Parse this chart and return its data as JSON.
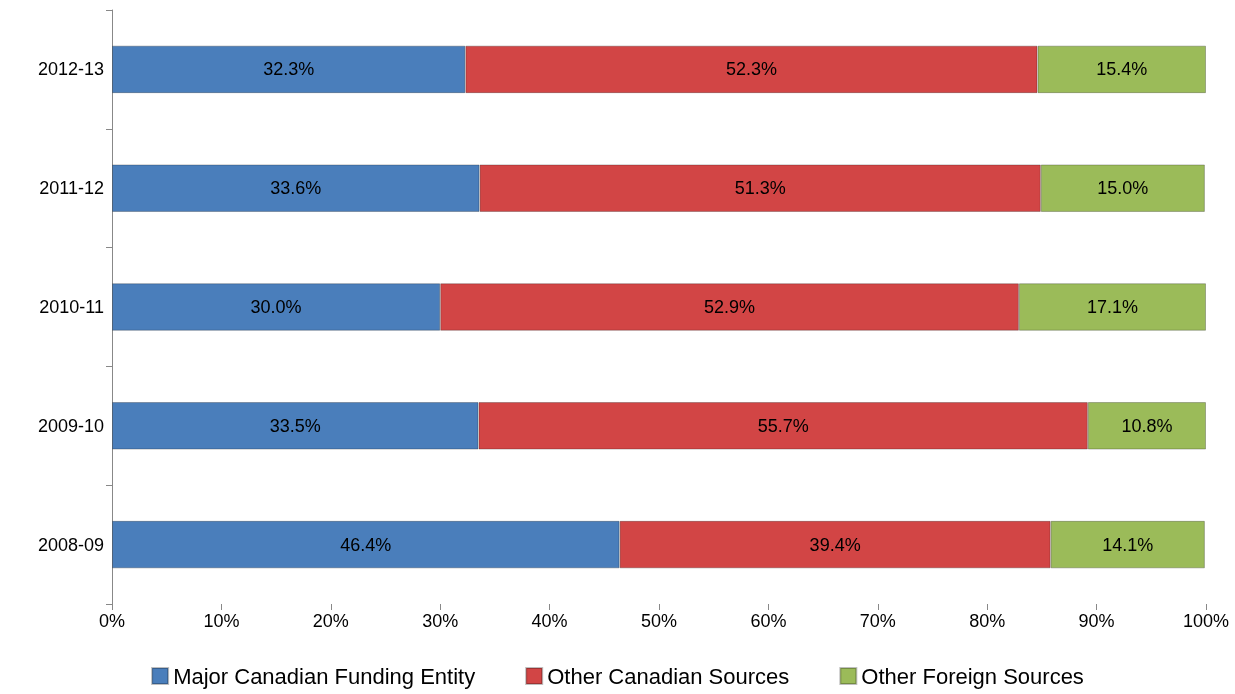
{
  "chart_data": {
    "type": "bar",
    "orientation": "horizontal",
    "stacked": true,
    "categories": [
      "2012-13",
      "2011-12",
      "2010-11",
      "2009-10",
      "2008-09"
    ],
    "series": [
      {
        "name": "Major Canadian Funding Entity",
        "color": "#4a7ebb",
        "values": [
          32.3,
          33.6,
          30.0,
          33.5,
          46.4
        ],
        "value_labels": [
          "32.3%",
          "33.6%",
          "30.0%",
          "33.5%",
          "46.4%"
        ]
      },
      {
        "name": "Other Canadian Sources",
        "color": "#d24545",
        "values": [
          52.3,
          51.3,
          52.9,
          55.7,
          39.4
        ],
        "value_labels": [
          "52.3%",
          "51.3%",
          "52.9%",
          "55.7%",
          "39.4%"
        ]
      },
      {
        "name": "Other Foreign Sources",
        "color": "#9bbb59",
        "values": [
          15.4,
          15.0,
          17.1,
          10.8,
          14.1
        ],
        "value_labels": [
          "15.4%",
          "15.0%",
          "17.1%",
          "10.8%",
          "14.1%"
        ]
      }
    ],
    "xlim": [
      0,
      100
    ],
    "xticks": [
      {
        "value": 0,
        "label": "0%"
      },
      {
        "value": 10,
        "label": "10%"
      },
      {
        "value": 20,
        "label": "20%"
      },
      {
        "value": 30,
        "label": "30%"
      },
      {
        "value": 40,
        "label": "40%"
      },
      {
        "value": 50,
        "label": "50%"
      },
      {
        "value": 60,
        "label": "60%"
      },
      {
        "value": 70,
        "label": "70%"
      },
      {
        "value": 80,
        "label": "80%"
      },
      {
        "value": 90,
        "label": "90%"
      },
      {
        "value": 100,
        "label": "100%"
      }
    ],
    "grid": false,
    "legend": "bottom"
  }
}
